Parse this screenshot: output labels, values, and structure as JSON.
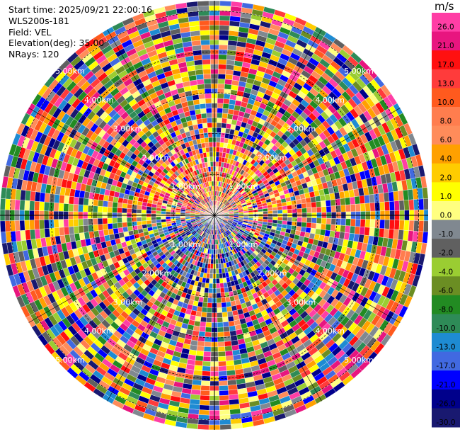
{
  "info": {
    "start_time": "Start time: 2025/09/21 22:00:16",
    "instrument": "WLS200s-181",
    "field": "Field: VEL",
    "elevation": "Elevation(deg): 35.00",
    "nrays": "NRays: 120"
  },
  "chart_data": {
    "type": "ppi-polar-heatmap",
    "field": "VEL",
    "unit": "m/s",
    "n_rays": 120,
    "elevation_deg": 35.0,
    "range_ring_labels": [
      "1.00km",
      "2.00km",
      "3.00km",
      "4.00km",
      "5.00km"
    ],
    "range_rings_km": [
      1,
      2,
      3,
      4,
      5
    ],
    "max_range_km": 5.25,
    "colorbar": {
      "ticks": [
        "26.0",
        "21.0",
        "17.0",
        "13.0",
        "10.0",
        "8.0",
        "6.0",
        "4.0",
        "2.0",
        "1.0",
        "0.0",
        "-1.0",
        "-2.0",
        "-4.0",
        "-6.0",
        "-8.0",
        "-10.0",
        "-13.0",
        "-17.0",
        "-21.0",
        "-26.0",
        "-30.0"
      ],
      "colors": [
        "#ff3ea5",
        "#e8157f",
        "#ff1010",
        "#ff3b3b",
        "#ff5a1e",
        "#ff7d4e",
        "#ff8c5a",
        "#ffa000",
        "#ffcc00",
        "#ffff00",
        "#ffff80",
        "#808890",
        "#606060",
        "#9acd32",
        "#6b8e23",
        "#228b22",
        "#2e8b57",
        "#1e8bd2",
        "#4169e1",
        "#0000ff",
        "#00008b",
        "#191970"
      ]
    }
  }
}
